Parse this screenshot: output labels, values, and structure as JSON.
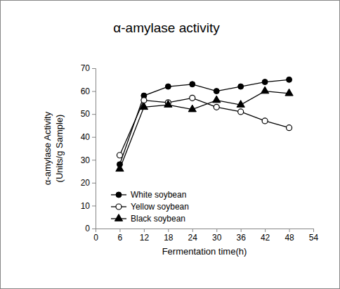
{
  "chart_data": {
    "type": "line",
    "title": "α-amylase activity",
    "xlabel": "Fermentation time(h)",
    "ylabel": [
      "α-amylase Activity",
      "(Units/g Sample)"
    ],
    "x": [
      6,
      12,
      18,
      24,
      30,
      36,
      42,
      48
    ],
    "series": [
      {
        "name": "White soybean",
        "color": "#000000",
        "marker": "circle",
        "line_style": "solid",
        "values": [
          28,
          58,
          62,
          63,
          60,
          62,
          64,
          65
        ]
      },
      {
        "name": "Yellow soybean",
        "color": "#000000",
        "marker": "open-circle",
        "line_style": "solid",
        "values": [
          32,
          56,
          55,
          57,
          53,
          51,
          47,
          44
        ]
      },
      {
        "name": "Black soybean",
        "color": "#000000",
        "marker": "triangle",
        "line_style": "solid",
        "values": [
          26,
          53,
          54,
          52,
          56,
          54,
          60,
          59
        ]
      }
    ],
    "xlim": [
      0,
      54
    ],
    "xticks": [
      0,
      6,
      12,
      18,
      24,
      30,
      36,
      42,
      48,
      54
    ],
    "ylim": [
      0,
      70
    ],
    "yticks": [
      0,
      10,
      20,
      30,
      40,
      50,
      60,
      70
    ],
    "grid": false,
    "legend": "lower left"
  }
}
